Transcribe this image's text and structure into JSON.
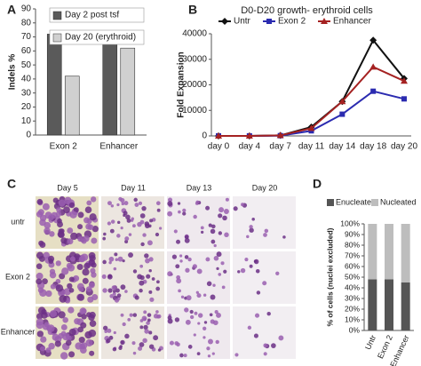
{
  "chart_data": [
    {
      "panel_label": "A",
      "type": "bar",
      "ylabel": "Indels %",
      "categories": [
        "Exon 2",
        "Enhancer"
      ],
      "series": [
        {
          "name": "Day 2 post tsf",
          "color": "#5a5a5a",
          "values": [
            72,
            68
          ]
        },
        {
          "name": "Day 20 (erythroid)",
          "color": "#d0d0d0",
          "values": [
            42,
            62
          ]
        }
      ],
      "ylim": [
        0,
        90
      ],
      "yticks": [
        0,
        10,
        20,
        30,
        40,
        50,
        60,
        70,
        80,
        90
      ]
    },
    {
      "panel_label": "B",
      "type": "line",
      "title": "D0-D20 growth- erythroid cells",
      "ylabel": "Fold Expansion",
      "categories": [
        "day 0",
        "day 4",
        "day 7",
        "day 11",
        "day 14",
        "day 18",
        "day 20"
      ],
      "series": [
        {
          "name": "Untr",
          "color": "#111111",
          "marker": "diamond",
          "values": [
            0,
            0,
            200,
            3500,
            13500,
            37500,
            22500
          ]
        },
        {
          "name": "Exon 2",
          "color": "#2b2bb0",
          "marker": "square",
          "values": [
            0,
            0,
            100,
            2000,
            8500,
            17500,
            14500
          ]
        },
        {
          "name": "Enhancer",
          "color": "#a52222",
          "marker": "triangle",
          "values": [
            0,
            0,
            200,
            3000,
            13500,
            27000,
            21500
          ]
        }
      ],
      "ylim": [
        0,
        40000
      ],
      "yticks": [
        0,
        10000,
        20000,
        30000,
        40000
      ]
    },
    {
      "panel_label": "D",
      "type": "stacked-bar",
      "ylabel": "% of cells (nuclei excluded)",
      "categories": [
        "Untr",
        "Exon 2",
        "Enhancer"
      ],
      "series": [
        {
          "name": "Enucleated",
          "color": "#555555",
          "values": [
            48,
            48,
            45
          ]
        },
        {
          "name": "Nucleated",
          "color": "#bdbdbd",
          "values": [
            52,
            52,
            55
          ]
        }
      ],
      "ylim": [
        0,
        100
      ],
      "yticks": [
        {
          "value": 0,
          "label": "0%"
        },
        {
          "value": 10,
          "label": "10%"
        },
        {
          "value": 20,
          "label": "20%"
        },
        {
          "value": 30,
          "label": "30%"
        },
        {
          "value": 40,
          "label": "40%"
        },
        {
          "value": 50,
          "label": "50%"
        },
        {
          "value": 60,
          "label": "60%"
        },
        {
          "value": 70,
          "label": "70%"
        },
        {
          "value": 80,
          "label": "80%"
        },
        {
          "value": 90,
          "label": "90%"
        },
        {
          "value": 100,
          "label": "100%"
        }
      ]
    }
  ],
  "micrographs": {
    "panel_label": "C",
    "columns": [
      "Day 5",
      "Day 11",
      "Day 13",
      "Day 20"
    ],
    "rows": [
      "untr",
      "Exon 2",
      "Enhancer"
    ]
  }
}
